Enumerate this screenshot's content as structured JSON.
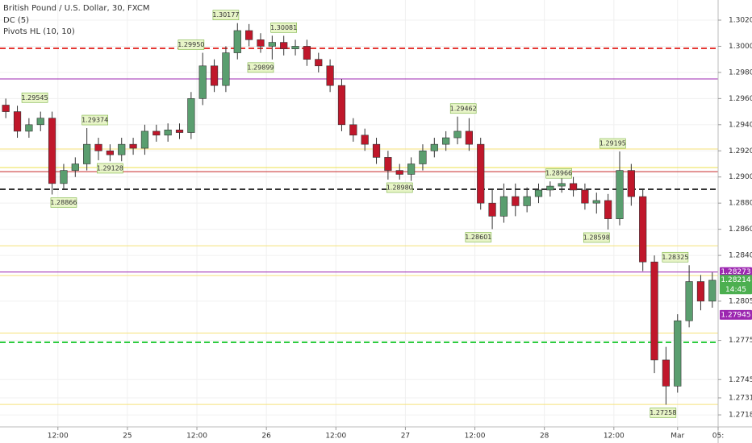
{
  "chart_data": {
    "type": "candlestick",
    "title": "British Pound / U.S. Dollar, 30, FXCM",
    "indicators": [
      "DC (5)",
      "Pivots HL (10, 10)"
    ],
    "x": [
      1,
      3,
      5,
      7,
      9,
      11,
      13,
      15,
      17,
      19,
      21,
      23,
      25,
      27,
      29,
      31,
      33,
      35,
      37,
      39,
      41,
      43,
      45,
      47,
      49,
      51,
      53,
      55,
      57,
      59,
      61,
      63,
      65,
      67,
      69,
      71,
      73,
      75,
      77,
      79,
      81,
      83,
      85,
      87,
      89,
      91,
      93,
      95,
      97,
      99,
      101,
      103,
      105,
      107,
      109,
      111,
      113,
      115,
      117,
      119,
      121,
      123
    ],
    "open": [
      1.2955,
      1.295,
      1.2935,
      1.294,
      1.2945,
      1.2895,
      1.2905,
      1.291,
      1.2925,
      1.292,
      1.2917,
      1.2925,
      1.2922,
      1.2935,
      1.2932,
      1.2936,
      1.2934,
      1.296,
      1.2985,
      1.297,
      1.2995,
      1.3012,
      1.3005,
      1.3,
      1.3003,
      1.2998,
      1.3,
      1.299,
      1.2985,
      1.297,
      1.294,
      1.2932,
      1.2925,
      1.2915,
      1.2905,
      1.2902,
      1.291,
      1.292,
      1.2925,
      1.293,
      1.2935,
      1.2925,
      1.288,
      1.287,
      1.2885,
      1.2878,
      1.2885,
      1.289,
      1.2893,
      1.2895,
      1.289,
      1.288,
      1.2882,
      1.2868,
      1.2905,
      1.2885,
      1.2835,
      1.276,
      1.274,
      1.279,
      1.282,
      1.2805
    ],
    "high": [
      1.296,
      1.29545,
      1.2945,
      1.295,
      1.295,
      1.291,
      1.2915,
      1.29374,
      1.293,
      1.2925,
      1.293,
      1.293,
      1.294,
      1.294,
      1.2941,
      1.2941,
      1.2965,
      1.2995,
      1.299,
      1.3,
      1.30177,
      1.3017,
      1.301,
      1.30081,
      1.3008,
      1.3005,
      1.3005,
      1.2995,
      1.299,
      1.2975,
      1.2945,
      1.2937,
      1.293,
      1.292,
      1.291,
      1.2915,
      1.2925,
      1.293,
      1.2935,
      1.29462,
      1.2945,
      1.293,
      1.289,
      1.2895,
      1.2895,
      1.2892,
      1.2895,
      1.28966,
      1.29,
      1.29,
      1.2895,
      1.2888,
      1.2887,
      1.29195,
      1.291,
      1.289,
      1.284,
      1.277,
      1.2795,
      1.28325,
      1.2825,
      1.2827
    ],
    "low": [
      1.2945,
      1.293,
      1.293,
      1.2935,
      1.28866,
      1.289,
      1.29,
      1.2905,
      1.29128,
      1.2912,
      1.2912,
      1.2917,
      1.2917,
      1.2927,
      1.2927,
      1.2929,
      1.2929,
      1.2955,
      1.2965,
      1.2965,
      1.299,
      1.3,
      1.2995,
      1.29899,
      1.2993,
      1.2993,
      1.2985,
      1.298,
      1.2965,
      1.2935,
      1.2927,
      1.292,
      1.291,
      1.2898,
      1.2898,
      1.2897,
      1.2905,
      1.2915,
      1.292,
      1.2925,
      1.292,
      1.2875,
      1.28601,
      1.2865,
      1.287,
      1.2873,
      1.288,
      1.2885,
      1.2888,
      1.2885,
      1.2875,
      1.2872,
      1.28598,
      1.2863,
      1.2878,
      1.2828,
      1.275,
      1.27258,
      1.2735,
      1.2785,
      1.2798,
      1.28
    ],
    "close": [
      1.295,
      1.2935,
      1.294,
      1.2945,
      1.2895,
      1.2905,
      1.291,
      1.2925,
      1.292,
      1.2917,
      1.2925,
      1.2922,
      1.2935,
      1.2932,
      1.2936,
      1.2934,
      1.296,
      1.2985,
      1.297,
      1.2995,
      1.3012,
      1.3005,
      1.3,
      1.3003,
      1.2998,
      1.3,
      1.299,
      1.2985,
      1.297,
      1.294,
      1.2932,
      1.2925,
      1.2915,
      1.2905,
      1.2902,
      1.291,
      1.292,
      1.2925,
      1.293,
      1.2935,
      1.2925,
      1.288,
      1.287,
      1.2885,
      1.2878,
      1.2885,
      1.289,
      1.2893,
      1.2895,
      1.289,
      1.288,
      1.2882,
      1.2868,
      1.2905,
      1.2885,
      1.2835,
      1.276,
      1.274,
      1.279,
      1.282,
      1.2805,
      1.2821
    ],
    "up_color": "#5a9e6f",
    "down_color": "#c0172b",
    "xlim": [
      0,
      124
    ],
    "xticks": [
      {
        "value": 10,
        "label": "12:00"
      },
      {
        "value": 22,
        "label": "25"
      },
      {
        "value": 34,
        "label": "12:00"
      },
      {
        "value": 46,
        "label": "26"
      },
      {
        "value": 58,
        "label": "12:00"
      },
      {
        "value": 70,
        "label": "27"
      },
      {
        "value": 82,
        "label": "12:00"
      },
      {
        "value": 94,
        "label": "28"
      },
      {
        "value": 106,
        "label": "12:00"
      },
      {
        "value": 117,
        "label": "Mar"
      },
      {
        "value": 124,
        "label": "05:"
      }
    ],
    "ylim": [
      1.27088,
      1.30354
    ],
    "yticks": [
      {
        "value": 1.302,
        "label": "1.30200"
      },
      {
        "value": 1.3,
        "label": "1.30000"
      },
      {
        "value": 1.298,
        "label": "1.29800"
      },
      {
        "value": 1.296,
        "label": "1.29600"
      },
      {
        "value": 1.294,
        "label": "1.29400"
      },
      {
        "value": 1.292,
        "label": "1.29200"
      },
      {
        "value": 1.29,
        "label": "1.29000"
      },
      {
        "value": 1.288,
        "label": "1.28800"
      },
      {
        "value": 1.286,
        "label": "1.28600"
      },
      {
        "value": 1.284,
        "label": "1.28400"
      },
      {
        "value": 1.2805,
        "label": "1.28050"
      },
      {
        "value": 1.2775,
        "label": "1.27750"
      },
      {
        "value": 1.2745,
        "label": "1.27450"
      },
      {
        "value": 1.2731,
        "label": "1.27310"
      },
      {
        "value": 1.2718,
        "label": "1.27180"
      }
    ],
    "grid": true,
    "levels": [
      {
        "value": 1.29984,
        "color": "#e53935",
        "style": "dashed"
      },
      {
        "value": 1.2975,
        "color": "#9c27b0",
        "style": "solid"
      },
      {
        "value": 1.29214,
        "color": "#f5e27a",
        "style": "solid"
      },
      {
        "value": 1.29072,
        "color": "#ede04e",
        "style": "solid"
      },
      {
        "value": 1.29041,
        "color": "#c62828",
        "style": "solid"
      },
      {
        "value": 1.28906,
        "color": "#333333",
        "style": "dashed"
      },
      {
        "value": 1.28474,
        "color": "#f5e27a",
        "style": "solid"
      },
      {
        "value": 1.28273,
        "color": "#9c27b0",
        "style": "solid"
      },
      {
        "value": 1.28246,
        "color": "#f5e27a",
        "style": "solid"
      },
      {
        "value": 1.27806,
        "color": "#f5e27a",
        "style": "solid"
      },
      {
        "value": 1.27735,
        "color": "#2ecc40",
        "style": "dashed"
      },
      {
        "value": 1.2726,
        "color": "#f5e27a",
        "style": "solid"
      }
    ],
    "pivots": [
      {
        "x": 39,
        "value": 1.30177,
        "label": "1.30177",
        "pos": "top"
      },
      {
        "x": 49,
        "value": 1.30081,
        "label": "1.30081",
        "pos": "top"
      },
      {
        "x": 33,
        "value": 1.2995,
        "label": "1.29950",
        "pos": "top"
      },
      {
        "x": 45,
        "value": 1.29899,
        "label": "1.29899",
        "pos": "bottom"
      },
      {
        "x": 6,
        "value": 1.29545,
        "label": "1.29545",
        "pos": "top"
      },
      {
        "x": 16.4,
        "value": 1.29374,
        "label": "1.29374",
        "pos": "top"
      },
      {
        "x": 19,
        "value": 1.29128,
        "label": "1.29128",
        "pos": "bottom"
      },
      {
        "x": 11,
        "value": 1.28866,
        "label": "1.28866",
        "pos": "bottom"
      },
      {
        "x": 69,
        "value": 1.2898,
        "label": "1.28980",
        "pos": "bottom"
      },
      {
        "x": 80,
        "value": 1.29462,
        "label": "1.29462",
        "pos": "top"
      },
      {
        "x": 96.5,
        "value": 1.28966,
        "label": "1.28966",
        "pos": "top"
      },
      {
        "x": 105.8,
        "value": 1.29195,
        "label": "1.29195",
        "pos": "top"
      },
      {
        "x": 82.6,
        "value": 1.28601,
        "label": "1.28601",
        "pos": "bottom"
      },
      {
        "x": 103,
        "value": 1.28598,
        "label": "1.28598",
        "pos": "bottom"
      },
      {
        "x": 116.6,
        "value": 1.28325,
        "label": "1.28325",
        "pos": "top"
      },
      {
        "x": 114.5,
        "value": 1.27258,
        "label": "1.27258",
        "pos": "bottom"
      }
    ],
    "price_tags": [
      {
        "value": 1.28273,
        "label": "1.28273",
        "color": "#9c27b0"
      },
      {
        "value": 1.28214,
        "label": "1.28214",
        "color": "#4caf50",
        "countdown": "14:45"
      },
      {
        "value": 1.27945,
        "label": "1.27945",
        "color": "#9c27b0"
      }
    ]
  }
}
